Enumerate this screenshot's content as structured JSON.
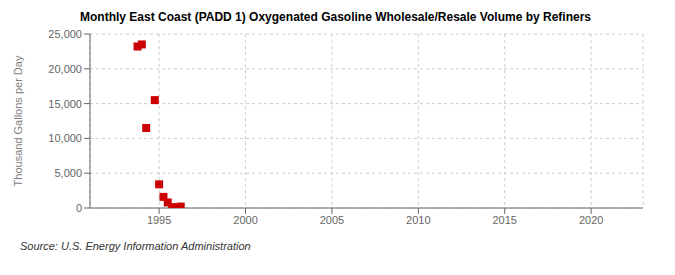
{
  "chart_data": {
    "type": "scatter",
    "title": "Monthly East Coast (PADD 1) Oxygenated Gasoline Wholesale/Resale Volume by Refiners",
    "ylabel": "Thousand Gallons per Day",
    "annotations": [
      "Source: U.S. Energy Information Administration"
    ],
    "x": [
      1993.75,
      1994.0,
      1994.25,
      1994.75,
      1995.0,
      1995.25,
      1995.5,
      1995.75,
      1996.0,
      1996.25
    ],
    "values": [
      23200,
      23500,
      11500,
      15500,
      3400,
      1600,
      800,
      100,
      100,
      200
    ],
    "color": "#cc0000",
    "marker": "square",
    "xlim": [
      1991,
      2023
    ],
    "ylim": [
      0,
      25000
    ],
    "xticks": [
      1995,
      2000,
      2005,
      2010,
      2015,
      2020
    ],
    "yticks": [
      0,
      {
        "value": 5000,
        "label": "5,000"
      },
      {
        "value": 10000,
        "label": "10,000"
      },
      {
        "value": 15000,
        "label": "15,000"
      },
      {
        "value": 20000,
        "label": "20,000"
      },
      {
        "value": 25000,
        "label": "25,000"
      }
    ],
    "grid": true
  }
}
